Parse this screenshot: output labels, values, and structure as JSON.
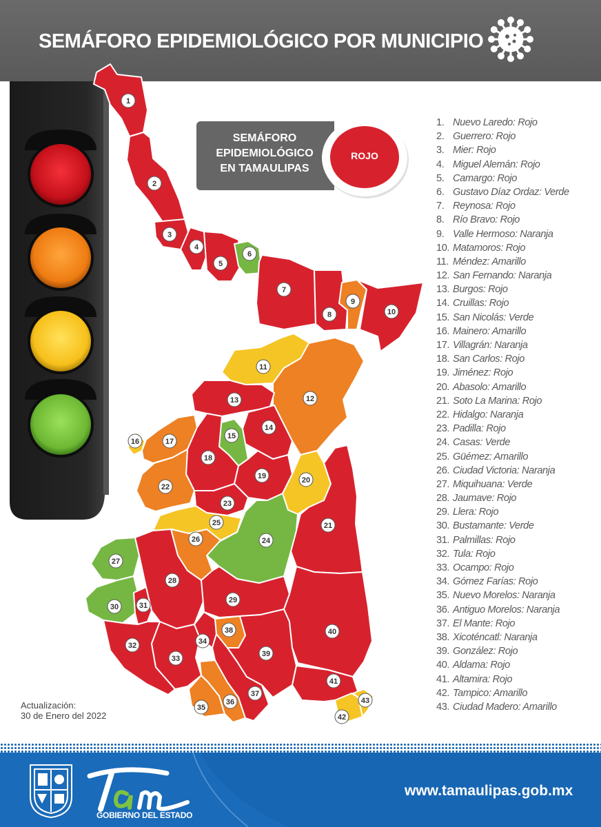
{
  "header": {
    "title": "SEMÁFORO EPIDEMIOLÓGICO POR MUNICIPIO",
    "icon": "virus-icon"
  },
  "colors": {
    "Rojo": "#d7222e",
    "Naranja": "#ed8123",
    "Amarillo": "#f5c525",
    "Verde": "#76b744",
    "header_bg": "#5f5f5f",
    "footer_bg": "#1766b3"
  },
  "traffic_light": {
    "lamps": [
      "red",
      "orange",
      "yellow",
      "green"
    ]
  },
  "state_badge": {
    "label_lines": [
      "SEMÁFORO",
      "EPIDEMIOLÓGICO",
      "EN TAMAULIPAS"
    ],
    "status": "ROJO"
  },
  "municipalities": [
    {
      "n": "1.",
      "name": "Nuevo Laredo",
      "status": "Rojo"
    },
    {
      "n": "2.",
      "name": "Guerrero",
      "status": "Rojo"
    },
    {
      "n": "3.",
      "name": "Mier",
      "status": "Rojo"
    },
    {
      "n": "4.",
      "name": "Miguel Alemán",
      "status": "Rojo"
    },
    {
      "n": "5.",
      "name": "Camargo",
      "status": "Rojo"
    },
    {
      "n": "6.",
      "name": "Gustavo Díaz Ordaz",
      "status": "Verde"
    },
    {
      "n": "7.",
      "name": "Reynosa",
      "status": "Rojo"
    },
    {
      "n": "8.",
      "name": "Río Bravo",
      "status": "Rojo"
    },
    {
      "n": "9.",
      "name": "Valle Hermoso",
      "status": "Naranja"
    },
    {
      "n": "10.",
      "name": "Matamoros",
      "status": "Rojo"
    },
    {
      "n": "11.",
      "name": "Méndez",
      "status": "Amarillo"
    },
    {
      "n": "12.",
      "name": "San Fernando",
      "status": "Naranja"
    },
    {
      "n": "13.",
      "name": "Burgos",
      "status": "Rojo"
    },
    {
      "n": "14.",
      "name": "Cruillas",
      "status": "Rojo"
    },
    {
      "n": "15.",
      "name": "San Nicolás",
      "status": "Verde"
    },
    {
      "n": "16.",
      "name": "Mainero",
      "status": "Amarillo"
    },
    {
      "n": "17.",
      "name": "Villagrán",
      "status": "Naranja"
    },
    {
      "n": "18.",
      "name": "San Carlos",
      "status": "Rojo"
    },
    {
      "n": "19.",
      "name": "Jiménez",
      "status": "Rojo"
    },
    {
      "n": "20.",
      "name": "Abasolo",
      "status": "Amarillo"
    },
    {
      "n": "21.",
      "name": "Soto La Marina",
      "status": "Rojo"
    },
    {
      "n": "22.",
      "name": "Hidalgo",
      "status": "Naranja"
    },
    {
      "n": "23.",
      "name": "Padilla",
      "status": "Rojo"
    },
    {
      "n": "24.",
      "name": "Casas",
      "status": "Verde"
    },
    {
      "n": "25.",
      "name": "Güémez",
      "status": "Amarillo"
    },
    {
      "n": "26.",
      "name": "Ciudad Victoria",
      "status": "Naranja"
    },
    {
      "n": "27.",
      "name": "Miquihuana",
      "status": "Verde"
    },
    {
      "n": "28.",
      "name": "Jaumave",
      "status": "Rojo"
    },
    {
      "n": "29.",
      "name": "Llera",
      "status": "Rojo"
    },
    {
      "n": "30.",
      "name": "Bustamante",
      "status": "Verde"
    },
    {
      "n": "31.",
      "name": "Palmillas",
      "status": "Rojo"
    },
    {
      "n": "32.",
      "name": "Tula",
      "status": "Rojo"
    },
    {
      "n": "33.",
      "name": "Ocampo",
      "status": "Rojo"
    },
    {
      "n": "34.",
      "name": "Gómez Farías",
      "status": "Rojo"
    },
    {
      "n": "35.",
      "name": "Nuevo Morelos",
      "status": "Naranja"
    },
    {
      "n": "36.",
      "name": "Antiguo Morelos",
      "status": "Naranja"
    },
    {
      "n": "37.",
      "name": "El Mante",
      "status": "Rojo"
    },
    {
      "n": "38.",
      "name": "Xicoténcatl",
      "status": "Naranja"
    },
    {
      "n": "39.",
      "name": "González",
      "status": "Rojo"
    },
    {
      "n": "40.",
      "name": "Aldama",
      "status": "Rojo"
    },
    {
      "n": "41.",
      "name": "Altamira",
      "status": "Rojo"
    },
    {
      "n": "42.",
      "name": "Tampico",
      "status": "Amarillo"
    },
    {
      "n": "43.",
      "name": "Ciudad Madero",
      "status": "Amarillo"
    }
  ],
  "update": {
    "label": "Actualización:",
    "date": "30 de Enero del 2022"
  },
  "footer": {
    "logo_text": "Tam",
    "gov_text": "GOBIERNO DEL ESTADO",
    "url": "www.tamaulipas.gob.mx"
  }
}
